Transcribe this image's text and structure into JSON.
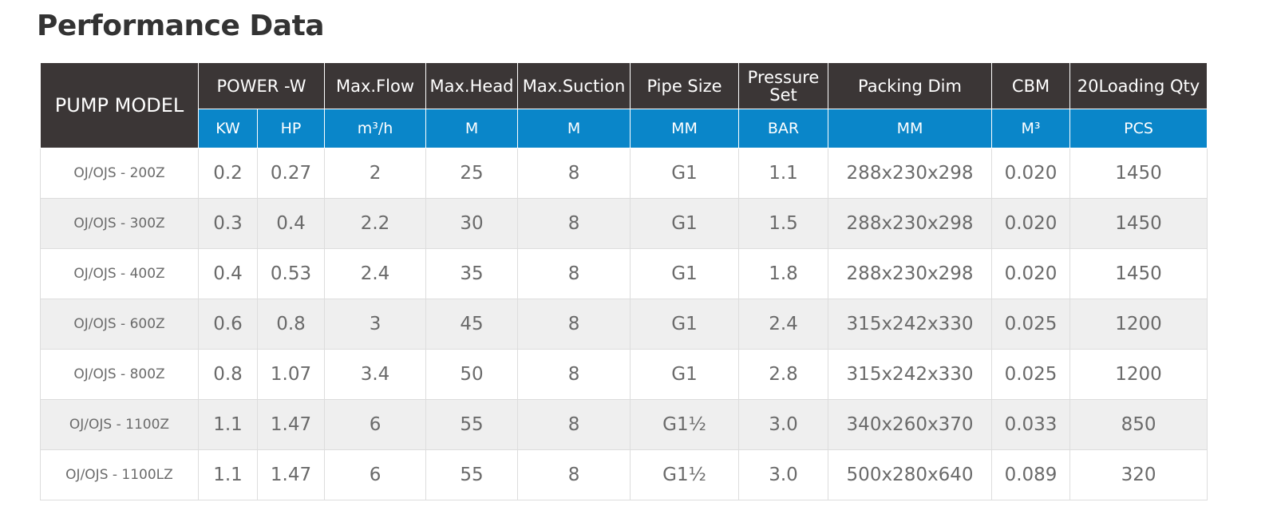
{
  "title": "Performance Data",
  "table": {
    "header": [
      "PUMP MODEL",
      "POWER -W",
      "Max.Flow",
      "Max.Head",
      "Max.Suction",
      "Pipe Size",
      "Pressure Set",
      "Packing Dim",
      "CBM",
      "20Loading Qty"
    ],
    "units": [
      "KW",
      "HP",
      "m³/h",
      "M",
      "M",
      "MM",
      "BAR",
      "MM",
      "M³",
      "PCS"
    ],
    "rows": [
      [
        "OJ/OJS - 200Z",
        "0.2",
        "0.27",
        "2",
        "25",
        "8",
        "G1",
        "1.1",
        "288x230x298",
        "0.020",
        "1450"
      ],
      [
        "OJ/OJS - 300Z",
        "0.3",
        "0.4",
        "2.2",
        "30",
        "8",
        "G1",
        "1.5",
        "288x230x298",
        "0.020",
        "1450"
      ],
      [
        "OJ/OJS - 400Z",
        "0.4",
        "0.53",
        "2.4",
        "35",
        "8",
        "G1",
        "1.8",
        "288x230x298",
        "0.020",
        "1450"
      ],
      [
        "OJ/OJS - 600Z",
        "0.6",
        "0.8",
        "3",
        "45",
        "8",
        "G1",
        "2.4",
        "315x242x330",
        "0.025",
        "1200"
      ],
      [
        "OJ/OJS - 800Z",
        "0.8",
        "1.07",
        "3.4",
        "50",
        "8",
        "G1",
        "2.8",
        "315x242x330",
        "0.025",
        "1200"
      ],
      [
        "OJ/OJS - 1100Z",
        "1.1",
        "1.47",
        "6",
        "55",
        "8",
        "G1½",
        "3.0",
        "340x260x370",
        "0.033",
        "850"
      ],
      [
        "OJ/OJS - 1100LZ",
        "1.1",
        "1.47",
        "6",
        "55",
        "8",
        "G1½",
        "3.0",
        "500x280x640",
        "0.089",
        "320"
      ]
    ]
  }
}
